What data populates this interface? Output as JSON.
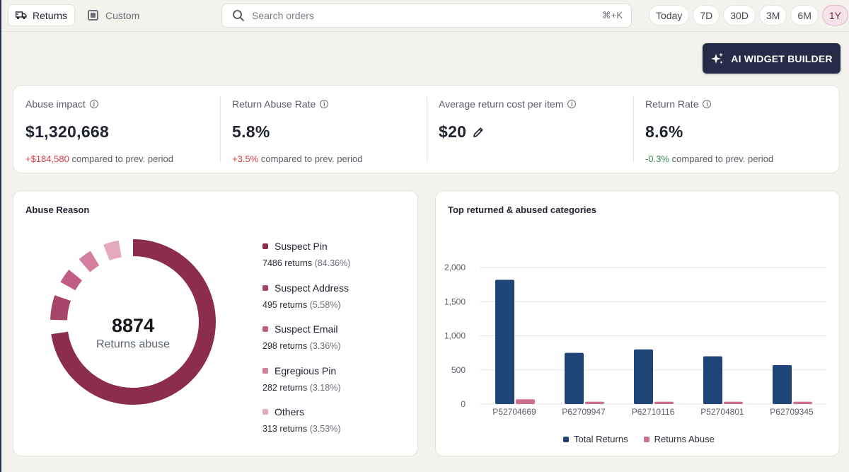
{
  "topbar": {
    "returns_label": "Returns",
    "custom_label": "Custom",
    "search_placeholder": "Search orders",
    "search_shortcut": "⌘+K",
    "ranges": [
      "Today",
      "7D",
      "30D",
      "3M",
      "6M",
      "1Y"
    ],
    "active_range": "1Y"
  },
  "ai_button": {
    "label": "AI WIDGET BUILDER"
  },
  "kpis": [
    {
      "label": "Abuse impact",
      "value": "$1,320,668",
      "delta": "+$184,580",
      "delta_suffix": "compared to prev. period"
    },
    {
      "label": "Return Abuse Rate",
      "value": "5.8%",
      "delta": "+3.5%",
      "delta_suffix": "compared to prev. period"
    },
    {
      "label": "Average return cost per item",
      "value": "$20"
    },
    {
      "label": "Return Rate",
      "value": "8.6%",
      "delta": "-0.3%",
      "delta_suffix": "compared to prev. period"
    }
  ],
  "abuse_reason": {
    "title": "Abuse Reason",
    "center_value": "8874",
    "center_label": "Returns abuse",
    "items": [
      {
        "name": "Suspect Pin",
        "returns": "7486 returns",
        "pct": "(84.36%)",
        "value": 7486,
        "color": "#8b2d4b"
      },
      {
        "name": "Suspect Address",
        "returns": "495 returns",
        "pct": "(5.58%)",
        "value": 495,
        "color": "#a8456a"
      },
      {
        "name": "Suspect Email",
        "returns": "298 returns",
        "pct": "(3.36%)",
        "value": 298,
        "color": "#c15d84"
      },
      {
        "name": "Egregious Pin",
        "returns": "282 returns",
        "pct": "(3.18%)",
        "value": 282,
        "color": "#d57fa0"
      },
      {
        "name": "Others",
        "returns": "313 returns",
        "pct": "(3.53%)",
        "value": 313,
        "color": "#e4a8bf"
      }
    ]
  },
  "categories_chart": {
    "title": "Top returned & abused categories",
    "legend": [
      "Total Returns",
      "Returns Abuse"
    ]
  },
  "chart_data": {
    "type": "bar",
    "categories": [
      "P52704669",
      "P62709947",
      "P62710116",
      "P52704801",
      "P62709345"
    ],
    "series": [
      {
        "name": "Total Returns",
        "values": [
          1820,
          750,
          800,
          700,
          570
        ],
        "color": "#1e4478"
      },
      {
        "name": "Returns Abuse",
        "values": [
          70,
          35,
          35,
          35,
          35
        ],
        "color": "#cf6e93"
      }
    ],
    "ylim": [
      0,
      2000
    ],
    "yticks": [
      "0",
      "500",
      "1,000",
      "1,500",
      "2,000"
    ],
    "grid": true,
    "legend_position": "bottom"
  }
}
